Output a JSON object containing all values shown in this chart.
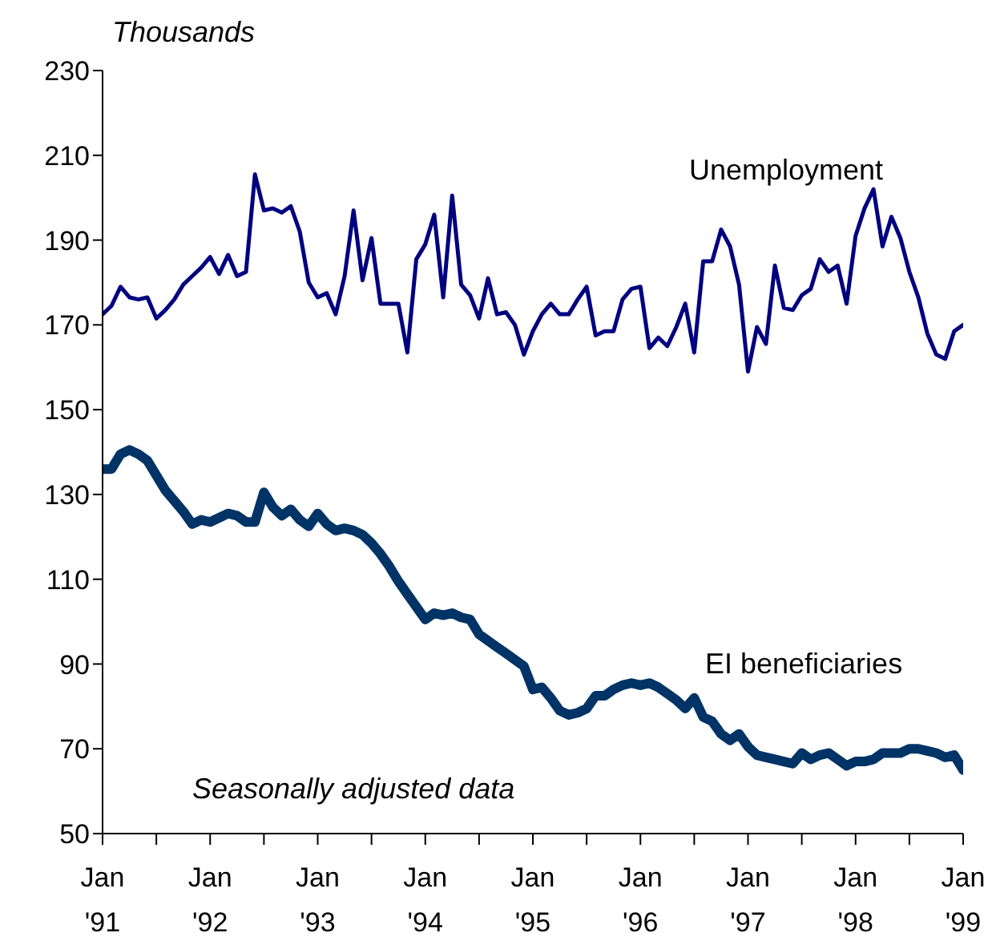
{
  "chart_data": {
    "type": "line",
    "ylabel": "Thousands",
    "annotations": [
      "Seasonally adjusted data"
    ],
    "x": [
      "1991-01",
      "1991-02",
      "1991-03",
      "1991-04",
      "1991-05",
      "1991-06",
      "1991-07",
      "1991-08",
      "1991-09",
      "1991-10",
      "1991-11",
      "1991-12",
      "1992-01",
      "1992-02",
      "1992-03",
      "1992-04",
      "1992-05",
      "1992-06",
      "1992-07",
      "1992-08",
      "1992-09",
      "1992-10",
      "1992-11",
      "1992-12",
      "1993-01",
      "1993-02",
      "1993-03",
      "1993-04",
      "1993-05",
      "1993-06",
      "1993-07",
      "1993-08",
      "1993-09",
      "1993-10",
      "1993-11",
      "1993-12",
      "1994-01",
      "1994-02",
      "1994-03",
      "1994-04",
      "1994-05",
      "1994-06",
      "1994-07",
      "1994-08",
      "1994-09",
      "1994-10",
      "1994-11",
      "1994-12",
      "1995-01",
      "1995-02",
      "1995-03",
      "1995-04",
      "1995-05",
      "1995-06",
      "1995-07",
      "1995-08",
      "1995-09",
      "1995-10",
      "1995-11",
      "1995-12",
      "1996-01",
      "1996-02",
      "1996-03",
      "1996-04",
      "1996-05",
      "1996-06",
      "1996-07",
      "1996-08",
      "1996-09",
      "1996-10",
      "1996-11",
      "1996-12",
      "1997-01",
      "1997-02",
      "1997-03",
      "1997-04",
      "1997-05",
      "1997-06",
      "1997-07",
      "1997-08",
      "1997-09",
      "1997-10",
      "1997-11",
      "1997-12",
      "1998-01",
      "1998-02",
      "1998-03",
      "1998-04",
      "1998-05",
      "1998-06",
      "1998-07",
      "1998-08",
      "1998-09",
      "1998-10",
      "1998-11",
      "1998-12",
      "1999-01"
    ],
    "series": [
      {
        "name": "Unemployment",
        "color": "#000080",
        "values": [
          172.5,
          174.5,
          179,
          176.5,
          176,
          176.5,
          171.5,
          173.5,
          176,
          179.5,
          181.5,
          183.5,
          186,
          182,
          186.5,
          181.5,
          182.5,
          205.5,
          197,
          197.5,
          196.5,
          198,
          192,
          180,
          176.5,
          177.5,
          172.5,
          181.5,
          197,
          180.5,
          190.5,
          175,
          175,
          175,
          163.5,
          185.5,
          189,
          196,
          176.5,
          200.5,
          179.5,
          177,
          171.5,
          181,
          172.5,
          173,
          170,
          163,
          168.5,
          172.5,
          175,
          172.5,
          172.5,
          176,
          179,
          167.5,
          168.5,
          168.5,
          176,
          178.5,
          179,
          164.5,
          167,
          165,
          169.5,
          175,
          163.5,
          185,
          185,
          192.5,
          188.5,
          179.5,
          159,
          169.5,
          165.5,
          184,
          174,
          173.5,
          177,
          178.5,
          185.5,
          182.5,
          184,
          175,
          191,
          197.5,
          202,
          188.5,
          195.5,
          190.5,
          182.5,
          176.5,
          168,
          163,
          162,
          168.5,
          170
        ]
      },
      {
        "name": "EI beneficiaries",
        "color": "#003366",
        "values": [
          136,
          136,
          139.5,
          140.5,
          139.5,
          138,
          134.5,
          131,
          128.5,
          126,
          123,
          124,
          123.5,
          124.5,
          125.5,
          125,
          123.5,
          123.5,
          130.5,
          127,
          125,
          126.5,
          124,
          122.5,
          125.5,
          123,
          121.5,
          122,
          121.5,
          120.5,
          118.5,
          116,
          113,
          109.5,
          106.5,
          103.5,
          100.5,
          102,
          101.5,
          102,
          101,
          100.5,
          97,
          95.5,
          94,
          92.5,
          91,
          89.5,
          84,
          84.5,
          82,
          79,
          78,
          78.5,
          79.5,
          82.5,
          82.5,
          84,
          85,
          85.5,
          85,
          85.5,
          84.5,
          83,
          81.5,
          79.5,
          82,
          77.5,
          76.5,
          73.5,
          72,
          73.5,
          70.5,
          68.5,
          68,
          67.5,
          67,
          66.5,
          69,
          67.5,
          68.5,
          69,
          67.5,
          66,
          67,
          67,
          67.5,
          69,
          69,
          69,
          70,
          70,
          69.5,
          69,
          68,
          68.5,
          65
        ]
      }
    ],
    "xlim": [
      "1991-01",
      "1999-01"
    ],
    "xticks": [
      {
        "value": "1991-01",
        "label": "Jan\n'91"
      },
      {
        "value": "1991-07",
        "label": null
      },
      {
        "value": "1992-01",
        "label": "Jan\n'92"
      },
      {
        "value": "1992-07",
        "label": null
      },
      {
        "value": "1993-01",
        "label": "Jan\n'93"
      },
      {
        "value": "1993-07",
        "label": null
      },
      {
        "value": "1994-01",
        "label": "Jan\n'94"
      },
      {
        "value": "1994-07",
        "label": null
      },
      {
        "value": "1995-01",
        "label": "Jan\n'95"
      },
      {
        "value": "1995-07",
        "label": null
      },
      {
        "value": "1996-01",
        "label": "Jan\n'96"
      },
      {
        "value": "1996-07",
        "label": null
      },
      {
        "value": "1997-01",
        "label": "Jan\n'97"
      },
      {
        "value": "1997-07",
        "label": null
      },
      {
        "value": "1998-01",
        "label": "Jan\n'98"
      },
      {
        "value": "1998-07",
        "label": null
      },
      {
        "value": "1999-01",
        "label": "Jan\n'99"
      }
    ],
    "ylim": [
      50,
      230
    ],
    "yticks": [
      50,
      70,
      90,
      110,
      130,
      150,
      170,
      190,
      210,
      230
    ],
    "marker": "none",
    "line_style": "solid"
  }
}
